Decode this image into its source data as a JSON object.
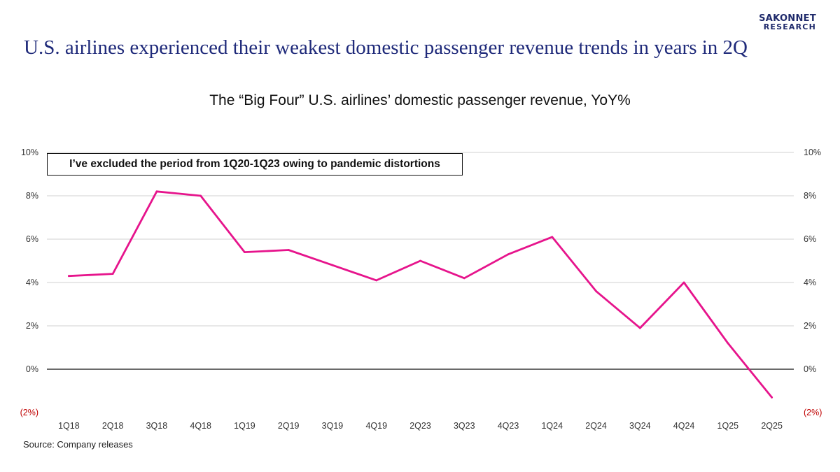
{
  "logo": {
    "line1": "SAKONNET",
    "line2": "RESEARCH"
  },
  "headline": "U.S. airlines experienced their weakest domestic passenger revenue trends in years in 2Q",
  "note": "I’ve excluded the period from 1Q20-1Q23 owing to pandemic distortions",
  "source": "Source: Company releases",
  "colors": {
    "line": "#e6148c",
    "headline": "#1f2a7a",
    "negative_label": "#c00000"
  },
  "chart_data": {
    "type": "line",
    "title": "The “Big Four” U.S. airlines’ domestic passenger revenue, YoY%",
    "categories": [
      "1Q18",
      "2Q18",
      "3Q18",
      "4Q18",
      "1Q19",
      "2Q19",
      "3Q19",
      "4Q19",
      "2Q23",
      "3Q23",
      "4Q23",
      "1Q24",
      "2Q24",
      "3Q24",
      "4Q24",
      "1Q25",
      "2Q25"
    ],
    "series": [
      {
        "name": "Domestic passenger revenue YoY%",
        "values": [
          4.3,
          4.4,
          8.2,
          8.0,
          5.4,
          5.5,
          4.8,
          4.1,
          5.0,
          4.2,
          5.3,
          6.1,
          3.6,
          1.9,
          4.0,
          1.2,
          -1.3
        ]
      }
    ],
    "ylim": [
      -2,
      10
    ],
    "yticks": [
      10,
      8,
      6,
      4,
      2,
      0,
      -2
    ],
    "ytick_labels": [
      "10%",
      "8%",
      "6%",
      "4%",
      "2%",
      "0%",
      "(2%)"
    ],
    "grid": true,
    "secondary_axis": true,
    "xlabel": "",
    "ylabel": ""
  }
}
